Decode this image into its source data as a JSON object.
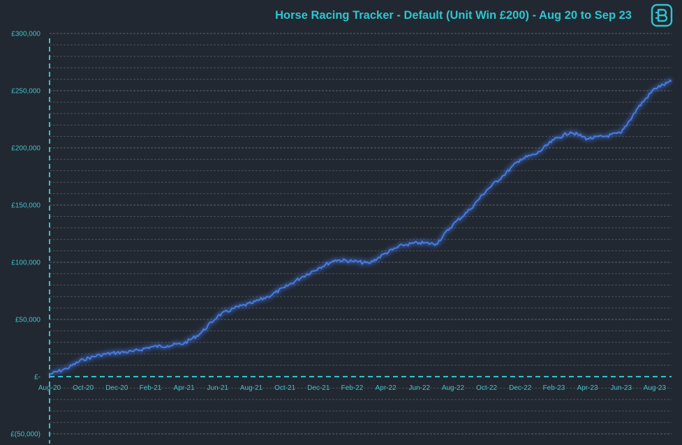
{
  "colors": {
    "background": "#222831",
    "accent": "#2ec6d0",
    "series": "#4a7bd8",
    "grid": "#5a6068"
  },
  "logo": {
    "icon": "b-logo-icon"
  },
  "chart_data": {
    "type": "line",
    "title": "Horse Racing Tracker - Default (Unit Win £200) - Aug 20 to Sep 23",
    "xlabel": "",
    "ylabel": "",
    "ylim": [
      -50000,
      300000
    ],
    "grid": true,
    "legend": "none",
    "ytick_values": [
      -50000,
      0,
      50000,
      100000,
      150000,
      200000,
      250000,
      300000
    ],
    "ytick_labels": [
      "£(50,000)",
      "£-",
      "£50,000",
      "£100,000",
      "£150,000",
      "£200,000",
      "£250,000",
      "£300,000"
    ],
    "xtick_labels": [
      "Aug-20",
      "Oct-20",
      "Dec-20",
      "Feb-21",
      "Apr-21",
      "Jun-21",
      "Aug-21",
      "Oct-21",
      "Dec-21",
      "Feb-22",
      "Apr-22",
      "Jun-22",
      "Aug-22",
      "Oct-22",
      "Dec-22",
      "Feb-23",
      "Apr-23",
      "Jun-23",
      "Aug-23"
    ],
    "xlim": [
      "Aug-20",
      "Sep-23"
    ],
    "series": [
      {
        "x": [
          "Aug-20",
          "Sep-20",
          "Oct-20",
          "Nov-20",
          "Dec-20",
          "Jan-21",
          "Feb-21",
          "Mar-21",
          "Apr-21",
          "May-21",
          "Jun-21",
          "Jul-21",
          "Aug-21",
          "Sep-21",
          "Oct-21",
          "Nov-21",
          "Dec-21",
          "Jan-22",
          "Feb-22",
          "Mar-22",
          "Apr-22",
          "May-22",
          "Jun-22",
          "Jul-22",
          "Aug-22",
          "Sep-22",
          "Oct-22",
          "Nov-22",
          "Dec-22",
          "Jan-23",
          "Feb-23",
          "Mar-23",
          "Apr-23",
          "May-23",
          "Jun-23",
          "Jul-23",
          "Aug-23",
          "Sep-23"
        ],
        "values": [
          2000,
          7000,
          15000,
          19000,
          21000,
          22000,
          26000,
          27000,
          29000,
          38000,
          53000,
          60000,
          64000,
          70000,
          78000,
          87000,
          95000,
          102000,
          101000,
          99000,
          108000,
          115000,
          117000,
          116000,
          133000,
          146000,
          163000,
          176000,
          190000,
          195000,
          207000,
          214000,
          208000,
          210000,
          213000,
          235000,
          252000,
          258000
        ]
      }
    ]
  }
}
